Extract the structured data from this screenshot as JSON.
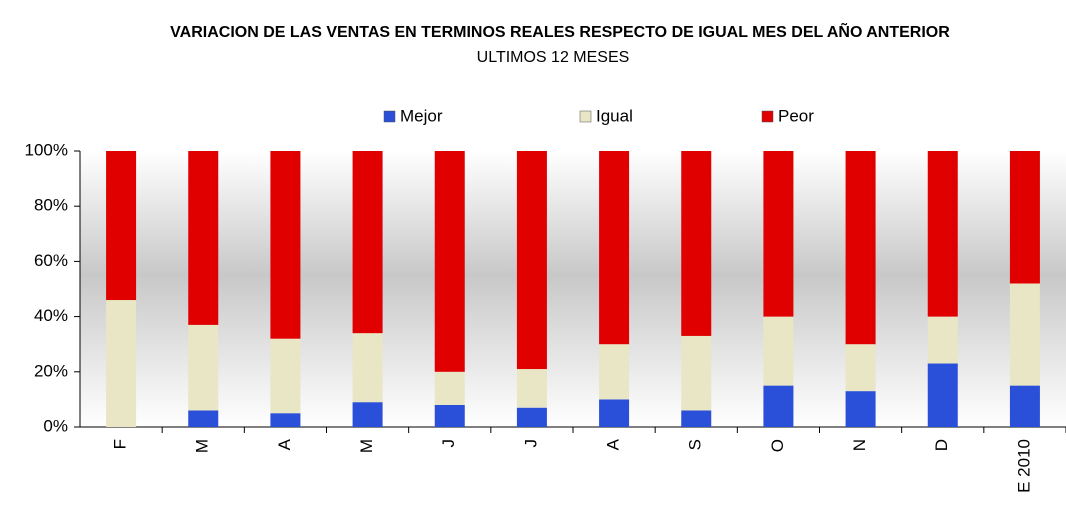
{
  "chart_data": {
    "type": "stacked_bar_100",
    "title": "VARIACION DE LAS VENTAS EN TERMINOS REALES  RESPECTO DE IGUAL MES DEL AÑO ANTERIOR",
    "subtitle": "ULTIMOS 12 MESES",
    "categories": [
      "F",
      "M",
      "A",
      "M",
      "J",
      "J",
      "A",
      "S",
      "O",
      "N",
      "D",
      "E 2010"
    ],
    "series": [
      {
        "name": "Mejor",
        "color": "#2a4fd8",
        "values": [
          0,
          6,
          5,
          9,
          8,
          7,
          10,
          6,
          15,
          13,
          23,
          15
        ]
      },
      {
        "name": "Igual",
        "color": "#e8e6c4",
        "values": [
          46,
          31,
          27,
          25,
          12,
          14,
          20,
          27,
          25,
          17,
          17,
          37
        ]
      },
      {
        "name": "Peor",
        "color": "#e00000",
        "values": [
          54,
          63,
          68,
          66,
          80,
          79,
          70,
          67,
          60,
          70,
          60,
          48
        ]
      }
    ],
    "ylim": [
      0,
      100
    ],
    "yticks": [
      {
        "value": 0,
        "label": "0%"
      },
      {
        "value": 20,
        "label": "20%"
      },
      {
        "value": 40,
        "label": "40%"
      },
      {
        "value": 60,
        "label": "60%"
      },
      {
        "value": 80,
        "label": "80%"
      },
      {
        "value": 100,
        "label": "100%"
      }
    ],
    "legend": "top"
  }
}
